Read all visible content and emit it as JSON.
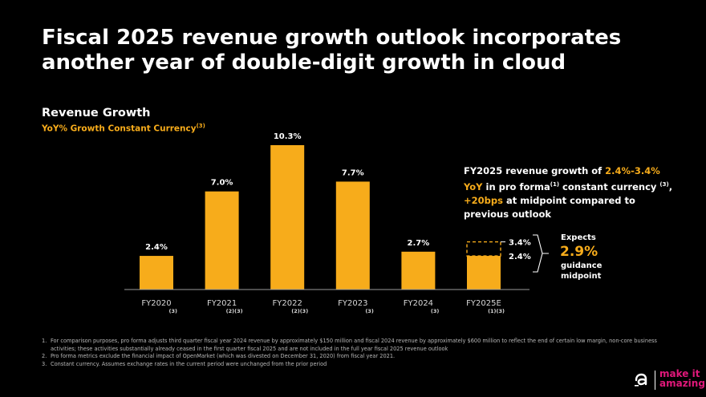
{
  "title": "Fiscal 2025 revenue growth outlook incorporates another year of double-digit growth in cloud",
  "subtitle": "Revenue Growth",
  "subtitle2_text": "YoY% Growth Constant Currency",
  "subtitle2_sup": "(3)",
  "chart_data": {
    "type": "bar",
    "title": "Revenue Growth",
    "ylabel": "YoY% Growth Constant Currency",
    "categories": [
      "FY2020",
      "FY2021",
      "FY2022",
      "FY2023",
      "FY2024",
      "FY2025E"
    ],
    "category_notes": [
      "(3)",
      "(2)(3)",
      "(2)(3)",
      "(3)",
      "(3)",
      "(1)(3)"
    ],
    "values": [
      2.4,
      7.0,
      10.3,
      7.7,
      2.7,
      2.4
    ],
    "data_labels": [
      "2.4%",
      "7.0%",
      "10.3%",
      "7.7%",
      "2.7%",
      "2.4%"
    ],
    "range_high": 3.4,
    "range_high_label": "3.4%",
    "ylim": [
      0,
      10.3
    ],
    "bar_color": "#f7ac1b",
    "axis_color": "#9a9a9a"
  },
  "callout": {
    "p1": "FY2025 revenue growth of ",
    "hl1": "2.4%-3.4%",
    "hl2": "YoY",
    "p2": " in pro forma",
    "sup1": "(1)",
    "p3": " constant currency ",
    "sup2": "(3)",
    "p4": ", ",
    "hl3": "+20bps",
    "p5": " at midpoint compared to previous outlook"
  },
  "expects": {
    "label": "Expects",
    "value": "2.9%",
    "footer": "guidance midpoint"
  },
  "footnotes": [
    {
      "num": "1.",
      "text": "For comparison purposes, pro forma adjusts third quarter fiscal year 2024 revenue by approximately $150 million and fiscal 2024 revenue by approximately $600 million to reflect the end of certain low margin, non-core business activities; these activities substantially already ceased in the first quarter fiscal 2025 and are not included in the full year fiscal 2025 revenue outlook"
    },
    {
      "num": "2.",
      "text": "Pro forma metrics exclude the financial impact of OpenMarket (which was divested on December 31, 2020) from fiscal year 2021."
    },
    {
      "num": "3.",
      "text": "Constant currency. Assumes exchange rates in the current period were unchanged from the prior period"
    }
  ],
  "logo": {
    "line1": "make it",
    "line2": "amazing",
    "accent": "#e0187a"
  }
}
